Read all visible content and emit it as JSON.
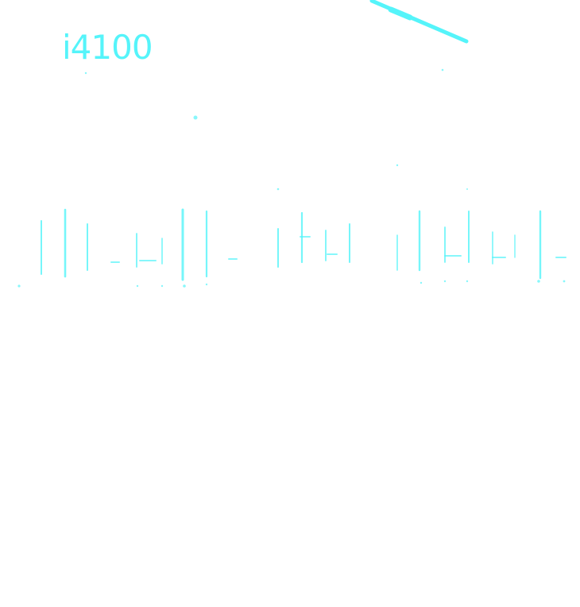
{
  "image": {
    "background_color": "#ffffff",
    "ink_color": "#55f4fa"
  },
  "marking": {
    "text": "i4100"
  }
}
